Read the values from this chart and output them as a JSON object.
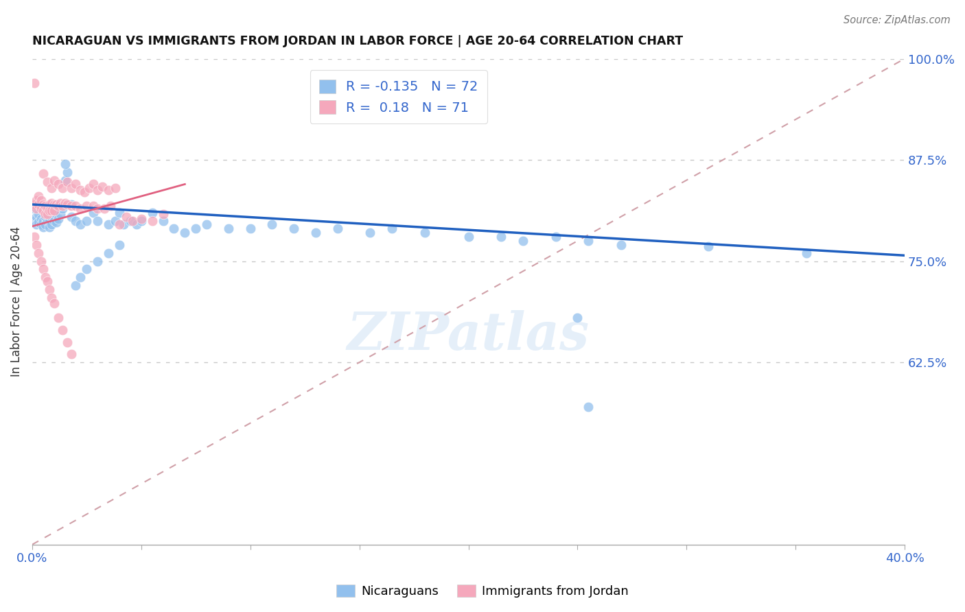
{
  "title": "NICARAGUAN VS IMMIGRANTS FROM JORDAN IN LABOR FORCE | AGE 20-64 CORRELATION CHART",
  "source": "Source: ZipAtlas.com",
  "ylabel": "In Labor Force | Age 20-64",
  "xmin": 0.0,
  "xmax": 0.4,
  "ymin": 0.4,
  "ymax": 1.0,
  "yticks_right": [
    0.625,
    0.75,
    0.875,
    1.0
  ],
  "ytick_labels_right": [
    "62.5%",
    "75.0%",
    "87.5%",
    "100.0%"
  ],
  "blue_color": "#92C0ED",
  "pink_color": "#F5A8BC",
  "blue_line_color": "#2060C0",
  "pink_line_color": "#E06080",
  "diag_color": "#D0A0A8",
  "R_blue": -0.135,
  "N_blue": 72,
  "R_pink": 0.18,
  "N_pink": 71,
  "legend_label_blue": "Nicaraguans",
  "legend_label_pink": "Immigrants from Jordan",
  "watermark": "ZIPatlas",
  "blue_line_x0": 0.0,
  "blue_line_y0": 0.82,
  "blue_line_x1": 0.4,
  "blue_line_y1": 0.757,
  "pink_line_x0": 0.0,
  "pink_line_y0": 0.793,
  "pink_line_x1": 0.07,
  "pink_line_y1": 0.845,
  "blue_scatter_x": [
    0.001,
    0.001,
    0.002,
    0.002,
    0.003,
    0.003,
    0.004,
    0.004,
    0.005,
    0.005,
    0.006,
    0.006,
    0.007,
    0.007,
    0.008,
    0.008,
    0.009,
    0.009,
    0.01,
    0.01,
    0.011,
    0.012,
    0.013,
    0.014,
    0.015,
    0.016,
    0.018,
    0.02,
    0.022,
    0.025,
    0.028,
    0.03,
    0.035,
    0.038,
    0.04,
    0.042,
    0.045,
    0.048,
    0.05,
    0.055,
    0.06,
    0.065,
    0.07,
    0.075,
    0.08,
    0.09,
    0.1,
    0.11,
    0.12,
    0.13,
    0.14,
    0.155,
    0.165,
    0.18,
    0.2,
    0.215,
    0.225,
    0.24,
    0.255,
    0.27,
    0.31,
    0.355,
    0.015,
    0.018,
    0.02,
    0.022,
    0.025,
    0.03,
    0.035,
    0.04,
    0.25,
    0.255
  ],
  "blue_scatter_y": [
    0.815,
    0.8,
    0.805,
    0.795,
    0.808,
    0.798,
    0.802,
    0.795,
    0.8,
    0.792,
    0.805,
    0.795,
    0.8,
    0.81,
    0.8,
    0.792,
    0.805,
    0.795,
    0.8,
    0.81,
    0.798,
    0.802,
    0.808,
    0.815,
    0.85,
    0.86,
    0.805,
    0.8,
    0.795,
    0.8,
    0.81,
    0.8,
    0.795,
    0.8,
    0.81,
    0.795,
    0.8,
    0.795,
    0.8,
    0.81,
    0.8,
    0.79,
    0.785,
    0.79,
    0.795,
    0.79,
    0.79,
    0.795,
    0.79,
    0.785,
    0.79,
    0.785,
    0.79,
    0.785,
    0.78,
    0.78,
    0.775,
    0.78,
    0.775,
    0.77,
    0.768,
    0.76,
    0.87,
    0.82,
    0.72,
    0.73,
    0.74,
    0.75,
    0.76,
    0.77,
    0.68,
    0.57
  ],
  "pink_scatter_x": [
    0.001,
    0.001,
    0.002,
    0.002,
    0.003,
    0.003,
    0.004,
    0.004,
    0.005,
    0.005,
    0.006,
    0.006,
    0.007,
    0.007,
    0.008,
    0.008,
    0.009,
    0.009,
    0.01,
    0.01,
    0.011,
    0.012,
    0.013,
    0.014,
    0.015,
    0.016,
    0.018,
    0.02,
    0.022,
    0.025,
    0.028,
    0.03,
    0.033,
    0.036,
    0.04,
    0.043,
    0.046,
    0.05,
    0.055,
    0.06,
    0.005,
    0.007,
    0.009,
    0.01,
    0.012,
    0.014,
    0.016,
    0.018,
    0.02,
    0.022,
    0.024,
    0.026,
    0.028,
    0.03,
    0.032,
    0.035,
    0.038,
    0.001,
    0.002,
    0.003,
    0.004,
    0.005,
    0.006,
    0.007,
    0.008,
    0.009,
    0.01,
    0.012,
    0.014,
    0.016,
    0.018
  ],
  "pink_scatter_y": [
    0.97,
    0.82,
    0.825,
    0.815,
    0.83,
    0.82,
    0.825,
    0.815,
    0.82,
    0.812,
    0.818,
    0.808,
    0.815,
    0.808,
    0.82,
    0.812,
    0.822,
    0.812,
    0.82,
    0.812,
    0.82,
    0.818,
    0.822,
    0.818,
    0.822,
    0.82,
    0.818,
    0.818,
    0.815,
    0.818,
    0.818,
    0.815,
    0.815,
    0.818,
    0.795,
    0.805,
    0.8,
    0.802,
    0.8,
    0.808,
    0.858,
    0.848,
    0.84,
    0.85,
    0.845,
    0.84,
    0.848,
    0.84,
    0.845,
    0.838,
    0.835,
    0.84,
    0.845,
    0.838,
    0.842,
    0.838,
    0.84,
    0.78,
    0.77,
    0.76,
    0.75,
    0.74,
    0.73,
    0.725,
    0.715,
    0.705,
    0.698,
    0.68,
    0.665,
    0.65,
    0.635
  ]
}
